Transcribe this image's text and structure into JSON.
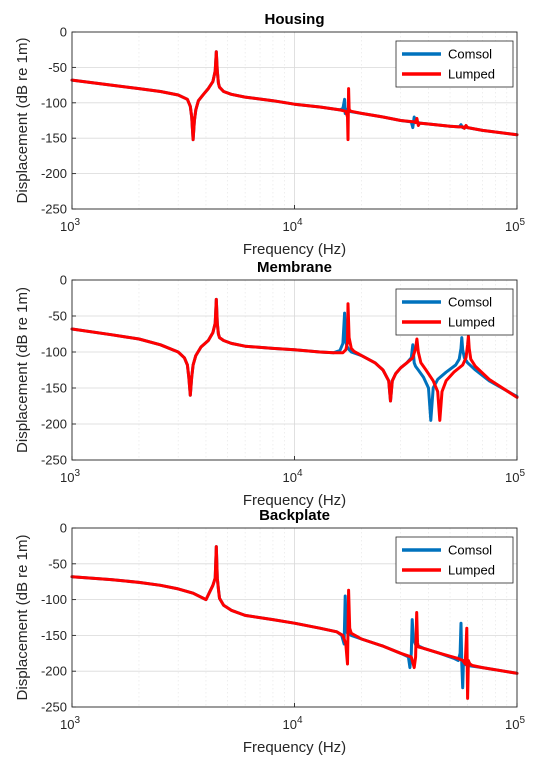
{
  "chart_data": [
    {
      "type": "line",
      "title": "Housing",
      "xlabel": "Frequency (Hz)",
      "ylabel": "Displacement (dB re 1m)",
      "xscale": "log",
      "xlim": [
        1000,
        100000
      ],
      "ylim": [
        -250,
        0
      ],
      "yticks": [
        "0",
        "-50",
        "-100",
        "-150",
        "-200",
        "-250"
      ],
      "xticks": [
        {
          "base": "10",
          "exp": "3"
        },
        {
          "base": "10",
          "exp": "4"
        },
        {
          "base": "10",
          "exp": "5"
        }
      ],
      "grid": true,
      "legend": "top-right",
      "series": [
        {
          "name": "Comsol",
          "color": "#0072BD",
          "x": [
            1000,
            1500,
            2000,
            2500,
            3000,
            3300,
            3400,
            3450,
            3500,
            3550,
            3600,
            3700,
            3900,
            4100,
            4300,
            4400,
            4450,
            4500,
            4550,
            4600,
            4800,
            5200,
            6000,
            8000,
            10000,
            13000,
            16000,
            16500,
            16800,
            16900,
            17000,
            17100,
            17200,
            17500,
            20000,
            25000,
            30000,
            33500,
            34000,
            34500,
            35000,
            35500,
            36000,
            37000,
            40000,
            50000,
            55000,
            56000,
            57000,
            58000,
            60000,
            70000,
            100000
          ],
          "y": [
            -68,
            -75,
            -80,
            -84,
            -89,
            -95,
            -105,
            -120,
            -152,
            -125,
            -110,
            -97,
            -88,
            -80,
            -70,
            -55,
            -28,
            -55,
            -72,
            -78,
            -84,
            -88,
            -92,
            -97,
            -102,
            -106,
            -110,
            -108,
            -95,
            -115,
            -112,
            -109,
            -111,
            -112,
            -115,
            -120,
            -125,
            -127,
            -135,
            -120,
            -127,
            -128,
            -128,
            -129,
            -130,
            -133,
            -134,
            -131,
            -135,
            -134,
            -135,
            -139,
            -145
          ]
        },
        {
          "name": "Lumped",
          "color": "#FF0000",
          "x": [
            1000,
            1500,
            2000,
            2500,
            3000,
            3300,
            3400,
            3450,
            3500,
            3550,
            3600,
            3700,
            3900,
            4100,
            4300,
            4400,
            4450,
            4500,
            4550,
            4600,
            4800,
            5200,
            6000,
            8000,
            10000,
            13000,
            16000,
            17000,
            17300,
            17400,
            17500,
            17600,
            17700,
            18000,
            20000,
            25000,
            30000,
            34500,
            35000,
            35500,
            36000,
            36500,
            37000,
            40000,
            50000,
            55000,
            57000,
            58000,
            59000,
            60000,
            70000,
            100000
          ],
          "y": [
            -68,
            -75,
            -80,
            -84,
            -89,
            -95,
            -105,
            -120,
            -152,
            -125,
            -110,
            -97,
            -88,
            -80,
            -70,
            -55,
            -28,
            -55,
            -72,
            -78,
            -84,
            -88,
            -92,
            -97,
            -102,
            -106,
            -110,
            -112,
            -120,
            -152,
            -80,
            -108,
            -111,
            -112,
            -115,
            -120,
            -125,
            -127,
            -128,
            -122,
            -132,
            -129,
            -129,
            -130,
            -133,
            -134,
            -134,
            -136,
            -132,
            -135,
            -139,
            -145
          ]
        }
      ]
    },
    {
      "type": "line",
      "title": "Membrane",
      "xlabel": "Frequency (Hz)",
      "ylabel": "Displacement (dB re 1m)",
      "xscale": "log",
      "xlim": [
        1000,
        100000
      ],
      "ylim": [
        -250,
        0
      ],
      "yticks": [
        "0",
        "-50",
        "-100",
        "-150",
        "-200",
        "-250"
      ],
      "xticks": [
        {
          "base": "10",
          "exp": "3"
        },
        {
          "base": "10",
          "exp": "4"
        },
        {
          "base": "10",
          "exp": "5"
        }
      ],
      "grid": true,
      "legend": "top-right",
      "series": [
        {
          "name": "Comsol",
          "color": "#0072BD",
          "x": [
            1000,
            1500,
            2000,
            2500,
            3000,
            3200,
            3300,
            3350,
            3400,
            3450,
            3500,
            3600,
            3800,
            4100,
            4300,
            4400,
            4450,
            4500,
            4550,
            4600,
            4800,
            5200,
            6000,
            8000,
            10000,
            13000,
            15000,
            16000,
            16500,
            16800,
            16900,
            17000,
            17200,
            17500,
            18000,
            20000,
            23000,
            25000,
            26500,
            27000,
            27500,
            28500,
            30000,
            32000,
            33500,
            34000,
            34500,
            35000,
            36000,
            38000,
            40000,
            41000,
            42000,
            44000,
            48000,
            53000,
            55000,
            56000,
            56500,
            57000,
            58000,
            60000,
            65000,
            75000,
            100000
          ],
          "y": [
            -68,
            -76,
            -82,
            -90,
            -100,
            -108,
            -118,
            -135,
            -160,
            -135,
            -118,
            -105,
            -93,
            -84,
            -73,
            -60,
            -27,
            -60,
            -75,
            -80,
            -84,
            -88,
            -92,
            -95,
            -97,
            -100,
            -101,
            -98,
            -88,
            -46,
            -60,
            -86,
            -92,
            -96,
            -100,
            -105,
            -115,
            -125,
            -140,
            -168,
            -140,
            -130,
            -122,
            -115,
            -108,
            -90,
            -115,
            -120,
            -125,
            -135,
            -150,
            -195,
            -150,
            -138,
            -128,
            -118,
            -110,
            -95,
            -80,
            -97,
            -108,
            -115,
            -125,
            -140,
            -162
          ]
        },
        {
          "name": "Lumped",
          "color": "#FF0000",
          "x": [
            1000,
            1500,
            2000,
            2500,
            3000,
            3200,
            3300,
            3350,
            3400,
            3450,
            3500,
            3600,
            3800,
            4100,
            4300,
            4400,
            4450,
            4500,
            4550,
            4600,
            4800,
            5200,
            6000,
            8000,
            10000,
            13000,
            15000,
            16500,
            17000,
            17300,
            17400,
            17600,
            18000,
            18500,
            20000,
            23000,
            25000,
            26500,
            27000,
            27500,
            28500,
            30000,
            32000,
            34000,
            35000,
            35500,
            36000,
            37000,
            39000,
            42000,
            44000,
            45000,
            46000,
            48000,
            52000,
            57000,
            59000,
            60000,
            60500,
            61000,
            62000,
            65000,
            75000,
            100000
          ],
          "y": [
            -68,
            -76,
            -82,
            -90,
            -100,
            -108,
            -118,
            -135,
            -160,
            -135,
            -118,
            -105,
            -93,
            -84,
            -73,
            -60,
            -27,
            -60,
            -75,
            -80,
            -84,
            -88,
            -92,
            -95,
            -97,
            -100,
            -101,
            -101,
            -97,
            -87,
            -33,
            -80,
            -95,
            -99,
            -105,
            -115,
            -125,
            -140,
            -168,
            -140,
            -130,
            -122,
            -115,
            -108,
            -95,
            -82,
            -100,
            -115,
            -125,
            -140,
            -155,
            -195,
            -155,
            -140,
            -128,
            -118,
            -108,
            -90,
            -78,
            -95,
            -110,
            -120,
            -138,
            -163
          ]
        }
      ]
    },
    {
      "type": "line",
      "title": "Backplate",
      "xlabel": "Frequency (Hz)",
      "ylabel": "Displacement (dB re 1m)",
      "xscale": "log",
      "xlim": [
        1000,
        100000
      ],
      "ylim": [
        -250,
        0
      ],
      "yticks": [
        "0",
        "-50",
        "-100",
        "-150",
        "-200",
        "-250"
      ],
      "xticks": [
        {
          "base": "10",
          "exp": "3"
        },
        {
          "base": "10",
          "exp": "4"
        },
        {
          "base": "10",
          "exp": "5"
        }
      ],
      "grid": true,
      "legend": "top-right",
      "series": [
        {
          "name": "Comsol",
          "color": "#0072BD",
          "x": [
            1000,
            1500,
            2000,
            2500,
            3000,
            3500,
            4000,
            4300,
            4400,
            4450,
            4500,
            4550,
            4600,
            4800,
            5200,
            6000,
            8000,
            10000,
            13000,
            15500,
            16300,
            16700,
            16900,
            17100,
            17300,
            18000,
            20000,
            25000,
            30000,
            32500,
            33000,
            33500,
            33800,
            34200,
            35000,
            38000,
            45000,
            52000,
            54500,
            55500,
            56000,
            56500,
            57000,
            57500,
            58000,
            60000,
            70000,
            100000
          ],
          "y": [
            -68,
            -72,
            -76,
            -80,
            -85,
            -91,
            -100,
            -80,
            -70,
            -26,
            -70,
            -85,
            -98,
            -108,
            -115,
            -122,
            -128,
            -133,
            -140,
            -145,
            -150,
            -162,
            -95,
            -140,
            -147,
            -150,
            -155,
            -165,
            -175,
            -180,
            -195,
            -175,
            -128,
            -155,
            -163,
            -168,
            -175,
            -182,
            -185,
            -175,
            -133,
            -190,
            -223,
            -185,
            -190,
            -192,
            -195,
            -203
          ]
        },
        {
          "name": "Lumped",
          "color": "#FF0000",
          "x": [
            1000,
            1500,
            2000,
            2500,
            3000,
            3500,
            4000,
            4300,
            4400,
            4450,
            4500,
            4550,
            4600,
            4800,
            5200,
            6000,
            8000,
            10000,
            13000,
            15500,
            16500,
            17000,
            17300,
            17500,
            17700,
            18000,
            20000,
            25000,
            30000,
            33500,
            34500,
            35000,
            35400,
            35700,
            36000,
            38000,
            45000,
            54000,
            57000,
            58500,
            59500,
            60000,
            60500,
            61000,
            61500,
            63000,
            70000,
            100000
          ],
          "y": [
            -68,
            -72,
            -76,
            -80,
            -85,
            -91,
            -100,
            -80,
            -70,
            -26,
            -70,
            -85,
            -98,
            -108,
            -115,
            -122,
            -128,
            -133,
            -140,
            -145,
            -150,
            -162,
            -190,
            -87,
            -140,
            -147,
            -155,
            -165,
            -175,
            -180,
            -195,
            -180,
            -118,
            -160,
            -166,
            -168,
            -175,
            -182,
            -185,
            -190,
            -140,
            -238,
            -185,
            -188,
            -190,
            -192,
            -195,
            -203
          ]
        }
      ]
    }
  ]
}
